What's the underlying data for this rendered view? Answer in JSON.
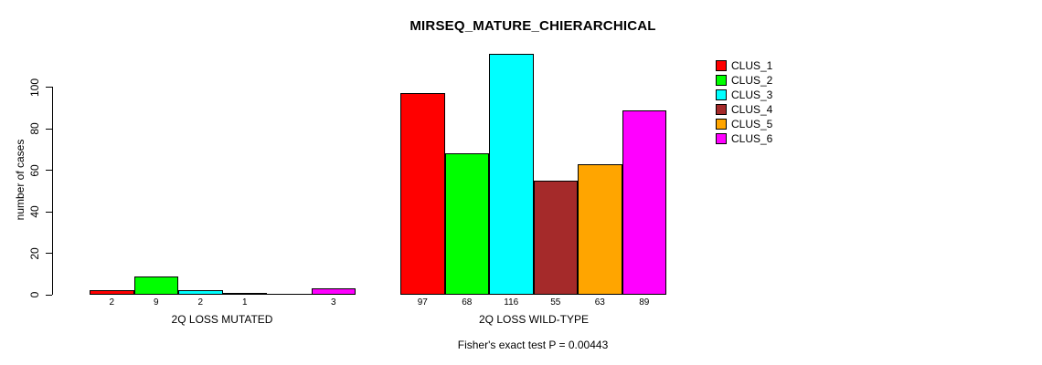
{
  "chart_data": {
    "type": "bar",
    "title": "MIRSEQ_MATURE_CHIERARCHICAL",
    "xlabel": "",
    "ylabel": "number of cases",
    "ylim": [
      0,
      100
    ],
    "yticks": [
      0,
      20,
      40,
      60,
      80,
      100
    ],
    "grid": false,
    "legend_position": "right",
    "categories": [
      "2Q LOSS MUTATED",
      "2Q LOSS WILD-TYPE"
    ],
    "series": [
      {
        "name": "CLUS_1",
        "color": "#ff0000",
        "values": [
          2,
          97
        ]
      },
      {
        "name": "CLUS_2",
        "color": "#00ff00",
        "values": [
          9,
          68
        ]
      },
      {
        "name": "CLUS_3",
        "color": "#00ffff",
        "values": [
          2,
          116
        ]
      },
      {
        "name": "CLUS_4",
        "color": "#a52a2a",
        "values": [
          1,
          55
        ]
      },
      {
        "name": "CLUS_5",
        "color": "#ffa500",
        "values": [
          0,
          63
        ]
      },
      {
        "name": "CLUS_6",
        "color": "#ff00ff",
        "values": [
          3,
          89
        ]
      }
    ],
    "bar_labels": [
      [
        "2",
        "9",
        "2",
        "1",
        "",
        "3"
      ],
      [
        "97",
        "68",
        "116",
        "55",
        "63",
        "89"
      ]
    ],
    "annotation": "Fisher's exact test P = 0.00443"
  }
}
